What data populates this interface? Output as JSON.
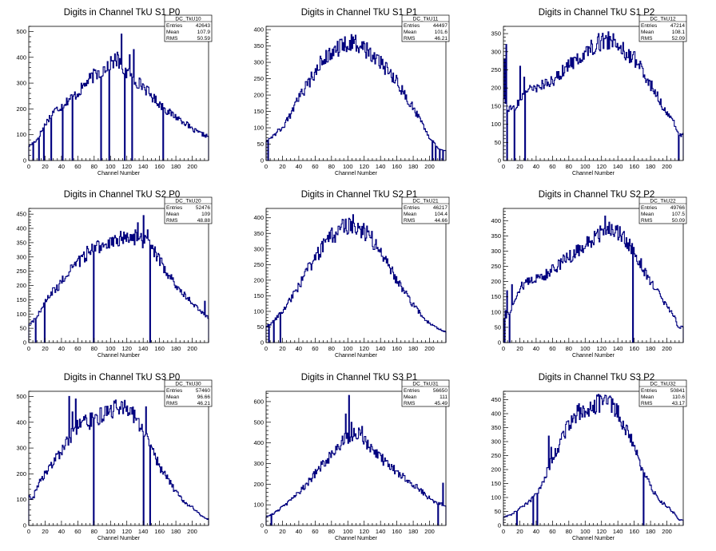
{
  "chart_data": [
    {
      "type": "histogram",
      "title": "Digits in Channel TkU S1 P0",
      "xlabel": "Channel Number",
      "ylabel": "",
      "xlim": [
        0,
        220
      ],
      "ylim": [
        0,
        520
      ],
      "x_ticks": [
        0,
        20,
        40,
        60,
        80,
        100,
        120,
        140,
        160,
        180,
        200
      ],
      "y_ticks": [
        0,
        100,
        200,
        300,
        400,
        500
      ],
      "stats": {
        "name": "DC_TkU10",
        "entries": "42643",
        "mean": "107.9",
        "rms": "50.59"
      },
      "anchors": [
        [
          0,
          55
        ],
        [
          6,
          70
        ],
        [
          10,
          80
        ],
        [
          20,
          140
        ],
        [
          30,
          190
        ],
        [
          40,
          210
        ],
        [
          50,
          240
        ],
        [
          60,
          260
        ],
        [
          70,
          300
        ],
        [
          80,
          330
        ],
        [
          90,
          350
        ],
        [
          100,
          380
        ],
        [
          108,
          390
        ],
        [
          115,
          360
        ],
        [
          120,
          340
        ],
        [
          130,
          310
        ],
        [
          140,
          290
        ],
        [
          150,
          250
        ],
        [
          160,
          220
        ],
        [
          170,
          190
        ],
        [
          180,
          170
        ],
        [
          190,
          150
        ],
        [
          200,
          120
        ],
        [
          210,
          105
        ],
        [
          218,
          95
        ]
      ],
      "spikes": [
        [
          113,
          490
        ],
        [
          108,
          420
        ],
        [
          98,
          410
        ],
        [
          128,
          430
        ],
        [
          123,
          410
        ]
      ],
      "drops": [
        5,
        12,
        18,
        27,
        41,
        53,
        88,
        98,
        117,
        126,
        164
      ]
    },
    {
      "type": "histogram",
      "title": "Digits in Channel TkU S1 P1",
      "xlabel": "Channel Number",
      "ylabel": "",
      "xlim": [
        0,
        220
      ],
      "ylim": [
        0,
        410
      ],
      "x_ticks": [
        0,
        20,
        40,
        60,
        80,
        100,
        120,
        140,
        160,
        180,
        200
      ],
      "y_ticks": [
        0,
        50,
        100,
        150,
        200,
        250,
        300,
        350,
        400
      ],
      "stats": {
        "name": "DC_TkU11",
        "entries": "44497",
        "mean": "101.6",
        "rms": "46.21"
      },
      "anchors": [
        [
          0,
          60
        ],
        [
          10,
          80
        ],
        [
          20,
          100
        ],
        [
          30,
          140
        ],
        [
          40,
          190
        ],
        [
          50,
          230
        ],
        [
          60,
          270
        ],
        [
          70,
          310
        ],
        [
          80,
          330
        ],
        [
          90,
          345
        ],
        [
          100,
          360
        ],
        [
          110,
          355
        ],
        [
          120,
          345
        ],
        [
          130,
          320
        ],
        [
          140,
          300
        ],
        [
          150,
          270
        ],
        [
          160,
          240
        ],
        [
          170,
          200
        ],
        [
          180,
          160
        ],
        [
          190,
          120
        ],
        [
          200,
          70
        ],
        [
          210,
          40
        ],
        [
          218,
          30
        ]
      ],
      "spikes": [
        [
          104,
          385
        ]
      ],
      "drops": [
        2,
        203,
        207,
        212,
        216
      ]
    },
    {
      "type": "histogram",
      "title": "Digits in Channel TkU S1 P2",
      "xlabel": "Channel Number",
      "ylabel": "",
      "xlim": [
        0,
        220
      ],
      "ylim": [
        0,
        370
      ],
      "x_ticks": [
        0,
        20,
        40,
        60,
        80,
        100,
        120,
        140,
        160,
        180,
        200
      ],
      "y_ticks": [
        0,
        50,
        100,
        150,
        200,
        250,
        300,
        350
      ],
      "stats": {
        "name": "DC_TkU12",
        "entries": "47214",
        "mean": "108.1",
        "rms": "52.09"
      },
      "anchors": [
        [
          0,
          160
        ],
        [
          8,
          140
        ],
        [
          15,
          150
        ],
        [
          20,
          170
        ],
        [
          30,
          190
        ],
        [
          40,
          200
        ],
        [
          50,
          210
        ],
        [
          60,
          220
        ],
        [
          70,
          240
        ],
        [
          80,
          260
        ],
        [
          90,
          280
        ],
        [
          100,
          300
        ],
        [
          110,
          315
        ],
        [
          120,
          330
        ],
        [
          130,
          330
        ],
        [
          140,
          320
        ],
        [
          150,
          300
        ],
        [
          160,
          280
        ],
        [
          170,
          250
        ],
        [
          180,
          210
        ],
        [
          190,
          170
        ],
        [
          200,
          130
        ],
        [
          210,
          100
        ],
        [
          215,
          70
        ]
      ],
      "spikes": [
        [
          1,
          280
        ],
        [
          3,
          320
        ],
        [
          20,
          260
        ],
        [
          25,
          230
        ],
        [
          116,
          350
        ],
        [
          128,
          355
        ]
      ],
      "drops": [
        4,
        13,
        26,
        214
      ]
    },
    {
      "type": "histogram",
      "title": "Digits in Channel TkU S2 P0",
      "xlabel": "Channel Number",
      "ylabel": "",
      "xlim": [
        0,
        220
      ],
      "ylim": [
        0,
        470
      ],
      "x_ticks": [
        0,
        20,
        40,
        60,
        80,
        100,
        120,
        140,
        160,
        180,
        200
      ],
      "y_ticks": [
        0,
        50,
        100,
        150,
        200,
        250,
        300,
        350,
        400,
        450
      ],
      "stats": {
        "name": "DC_TkU20",
        "entries": "52476",
        "mean": "109",
        "rms": "48.88"
      },
      "anchors": [
        [
          0,
          60
        ],
        [
          10,
          90
        ],
        [
          20,
          140
        ],
        [
          30,
          180
        ],
        [
          40,
          210
        ],
        [
          50,
          250
        ],
        [
          60,
          280
        ],
        [
          70,
          310
        ],
        [
          80,
          330
        ],
        [
          90,
          340
        ],
        [
          100,
          350
        ],
        [
          110,
          360
        ],
        [
          120,
          370
        ],
        [
          130,
          370
        ],
        [
          140,
          360
        ],
        [
          150,
          330
        ],
        [
          160,
          290
        ],
        [
          170,
          240
        ],
        [
          180,
          200
        ],
        [
          190,
          170
        ],
        [
          200,
          140
        ],
        [
          210,
          110
        ],
        [
          218,
          90
        ]
      ],
      "spikes": [
        [
          140,
          445
        ],
        [
          133,
          420
        ],
        [
          145,
          395
        ],
        [
          128,
          380
        ],
        [
          215,
          145
        ]
      ],
      "drops": [
        8,
        19,
        79,
        148
      ]
    },
    {
      "type": "histogram",
      "title": "Digits in Channel TkU S2 P1",
      "xlabel": "Channel Number",
      "ylabel": "",
      "xlim": [
        0,
        220
      ],
      "ylim": [
        0,
        430
      ],
      "x_ticks": [
        0,
        20,
        40,
        60,
        80,
        100,
        120,
        140,
        160,
        180,
        200
      ],
      "y_ticks": [
        0,
        50,
        100,
        150,
        200,
        250,
        300,
        350,
        400
      ],
      "stats": {
        "name": "DC_TkU21",
        "entries": "46217",
        "mean": "104.4",
        "rms": "44.66"
      },
      "anchors": [
        [
          0,
          50
        ],
        [
          10,
          70
        ],
        [
          20,
          100
        ],
        [
          30,
          140
        ],
        [
          40,
          180
        ],
        [
          50,
          230
        ],
        [
          60,
          270
        ],
        [
          70,
          310
        ],
        [
          80,
          340
        ],
        [
          90,
          360
        ],
        [
          100,
          375
        ],
        [
          110,
          370
        ],
        [
          120,
          355
        ],
        [
          130,
          330
        ],
        [
          140,
          290
        ],
        [
          150,
          250
        ],
        [
          160,
          200
        ],
        [
          170,
          160
        ],
        [
          180,
          120
        ],
        [
          190,
          90
        ],
        [
          200,
          60
        ],
        [
          210,
          45
        ],
        [
          218,
          35
        ]
      ],
      "spikes": [
        [
          106,
          410
        ],
        [
          93,
          395
        ]
      ],
      "drops": [
        3,
        9,
        17
      ]
    },
    {
      "type": "histogram",
      "title": "Digits in Channel TkU S2 P2",
      "xlabel": "Channel Number",
      "ylabel": "",
      "xlim": [
        0,
        220
      ],
      "ylim": [
        0,
        440
      ],
      "x_ticks": [
        0,
        20,
        40,
        60,
        80,
        100,
        120,
        140,
        160,
        180,
        200
      ],
      "y_ticks": [
        0,
        50,
        100,
        150,
        200,
        250,
        300,
        350,
        400
      ],
      "stats": {
        "name": "DC_TkU22",
        "entries": "49766",
        "mean": "107.5",
        "rms": "50.09"
      },
      "anchors": [
        [
          0,
          75
        ],
        [
          8,
          100
        ],
        [
          20,
          180
        ],
        [
          30,
          200
        ],
        [
          40,
          210
        ],
        [
          50,
          220
        ],
        [
          60,
          240
        ],
        [
          70,
          260
        ],
        [
          80,
          280
        ],
        [
          90,
          300
        ],
        [
          100,
          320
        ],
        [
          110,
          340
        ],
        [
          120,
          360
        ],
        [
          130,
          370
        ],
        [
          140,
          360
        ],
        [
          150,
          340
        ],
        [
          160,
          300
        ],
        [
          170,
          250
        ],
        [
          180,
          200
        ],
        [
          190,
          160
        ],
        [
          200,
          120
        ],
        [
          210,
          80
        ],
        [
          214,
          50
        ]
      ],
      "spikes": [
        [
          2,
          105
        ],
        [
          4,
          170
        ],
        [
          10,
          190
        ],
        [
          124,
          415
        ]
      ],
      "drops": [
        1,
        7,
        158
      ]
    },
    {
      "type": "histogram",
      "title": "Digits in Channel TkU S3 P0",
      "xlabel": "Channel Number",
      "ylabel": "",
      "xlim": [
        0,
        220
      ],
      "ylim": [
        0,
        520
      ],
      "x_ticks": [
        0,
        20,
        40,
        60,
        80,
        100,
        120,
        140,
        160,
        180,
        200
      ],
      "y_ticks": [
        0,
        100,
        200,
        300,
        400,
        500
      ],
      "stats": {
        "name": "DC_TkU30",
        "entries": "57460",
        "mean": "96.66",
        "rms": "46.21"
      },
      "anchors": [
        [
          0,
          120
        ],
        [
          5,
          100
        ],
        [
          10,
          150
        ],
        [
          20,
          200
        ],
        [
          30,
          240
        ],
        [
          40,
          290
        ],
        [
          50,
          340
        ],
        [
          60,
          380
        ],
        [
          70,
          400
        ],
        [
          80,
          410
        ],
        [
          90,
          430
        ],
        [
          100,
          450
        ],
        [
          110,
          460
        ],
        [
          120,
          450
        ],
        [
          130,
          420
        ],
        [
          140,
          370
        ],
        [
          150,
          300
        ],
        [
          160,
          230
        ],
        [
          170,
          180
        ],
        [
          180,
          130
        ],
        [
          190,
          90
        ],
        [
          200,
          70
        ],
        [
          210,
          40
        ],
        [
          218,
          25
        ]
      ],
      "spikes": [
        [
          49,
          500
        ],
        [
          57,
          490
        ],
        [
          64,
          400
        ],
        [
          53,
          440
        ],
        [
          117,
          485
        ],
        [
          143,
          460
        ]
      ],
      "drops": [
        79,
        140,
        148
      ]
    },
    {
      "type": "histogram",
      "title": "Digits in Channel TkU S3 P1",
      "xlabel": "Channel Number",
      "ylabel": "",
      "xlim": [
        0,
        220
      ],
      "ylim": [
        0,
        650
      ],
      "x_ticks": [
        0,
        20,
        40,
        60,
        80,
        100,
        120,
        140,
        160,
        180,
        200
      ],
      "y_ticks": [
        0,
        100,
        200,
        300,
        400,
        500,
        600
      ],
      "stats": {
        "name": "DC_TkU31",
        "entries": "56650",
        "mean": "111",
        "rms": "45.49"
      },
      "anchors": [
        [
          0,
          40
        ],
        [
          10,
          60
        ],
        [
          20,
          90
        ],
        [
          30,
          120
        ],
        [
          40,
          160
        ],
        [
          50,
          200
        ],
        [
          60,
          250
        ],
        [
          70,
          300
        ],
        [
          80,
          340
        ],
        [
          90,
          390
        ],
        [
          100,
          430
        ],
        [
          110,
          450
        ],
        [
          120,
          420
        ],
        [
          130,
          360
        ],
        [
          140,
          330
        ],
        [
          150,
          290
        ],
        [
          160,
          260
        ],
        [
          170,
          230
        ],
        [
          180,
          200
        ],
        [
          190,
          170
        ],
        [
          200,
          130
        ],
        [
          210,
          110
        ],
        [
          218,
          100
        ]
      ],
      "spikes": [
        [
          101,
          630
        ],
        [
          97,
          540
        ],
        [
          104,
          500
        ],
        [
          117,
          480
        ],
        [
          210,
          230
        ],
        [
          216,
          205
        ]
      ],
      "drops": [
        6,
        210
      ]
    },
    {
      "type": "histogram",
      "title": "Digits in Channel TkU S3 P2",
      "xlabel": "Channel Number",
      "ylabel": "",
      "xlim": [
        0,
        220
      ],
      "ylim": [
        0,
        480
      ],
      "x_ticks": [
        0,
        20,
        40,
        60,
        80,
        100,
        120,
        140,
        160,
        180,
        200
      ],
      "y_ticks": [
        0,
        50,
        100,
        150,
        200,
        250,
        300,
        350,
        400,
        450
      ],
      "stats": {
        "name": "DC_TkU32",
        "entries": "50841",
        "mean": "110.6",
        "rms": "43.17"
      },
      "anchors": [
        [
          0,
          30
        ],
        [
          10,
          40
        ],
        [
          20,
          60
        ],
        [
          30,
          80
        ],
        [
          40,
          110
        ],
        [
          50,
          170
        ],
        [
          60,
          240
        ],
        [
          70,
          300
        ],
        [
          80,
          360
        ],
        [
          90,
          400
        ],
        [
          100,
          420
        ],
        [
          110,
          430
        ],
        [
          120,
          440
        ],
        [
          130,
          440
        ],
        [
          140,
          400
        ],
        [
          150,
          350
        ],
        [
          160,
          280
        ],
        [
          170,
          200
        ],
        [
          180,
          140
        ],
        [
          190,
          90
        ],
        [
          200,
          70
        ],
        [
          210,
          40
        ],
        [
          214,
          20
        ]
      ],
      "spikes": [
        [
          55,
          320
        ],
        [
          58,
          280
        ],
        [
          128,
          455
        ]
      ],
      "drops": [
        16,
        36,
        41,
        171
      ]
    }
  ],
  "colors": {
    "histogram_line": "#00007f",
    "axes": "#000000",
    "background": "#ffffff"
  },
  "stats_labels": {
    "entries": "Entries",
    "mean": "Mean",
    "rms": "RMS"
  }
}
